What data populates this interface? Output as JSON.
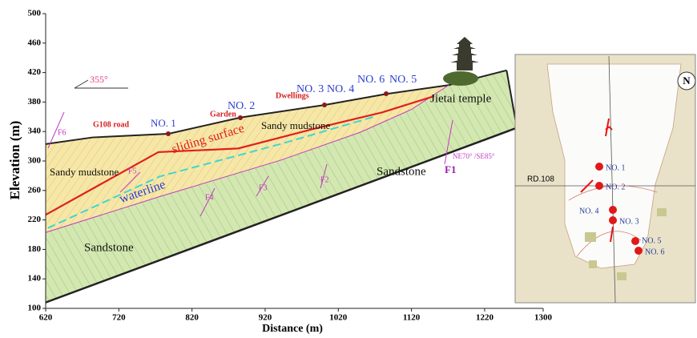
{
  "chart_data": {
    "type": "section",
    "xlabel": "Distance (m)",
    "ylabel": "Elevation (m)",
    "xlim": [
      620,
      1300
    ],
    "ylim": [
      100,
      500
    ],
    "xticks": [
      620,
      720,
      820,
      920,
      1020,
      1120,
      1220,
      1300
    ],
    "yticks": [
      100,
      140,
      180,
      220,
      260,
      300,
      340,
      380,
      420,
      460,
      500
    ],
    "surface": {
      "x": [
        620,
        684,
        788,
        886,
        1001,
        1086,
        1171,
        1250
      ],
      "values": [
        323,
        332,
        337,
        359,
        376,
        391,
        403,
        423
      ]
    },
    "boundary": {
      "x": [
        620,
        777,
        941,
        1050,
        1120,
        1171
      ],
      "values": [
        203,
        252,
        301,
        339,
        370,
        403
      ]
    },
    "base": {
      "x": [
        620,
        1264
      ],
      "values": [
        108,
        345
      ]
    },
    "series": [
      {
        "name": "sliding surface",
        "color": "#e0201c",
        "x": [
          620,
          774,
          883,
          992,
          1080,
          1151
        ],
        "values": [
          227,
          312,
          317,
          345,
          366,
          388
        ]
      },
      {
        "name": "waterline",
        "color": "#3fd6d0",
        "x": [
          623,
          776,
          941,
          1072
        ],
        "values": [
          209,
          279,
          323,
          361
        ]
      }
    ],
    "annotations": [
      "355°",
      "G108 road",
      "NO. 1",
      "Garden",
      "NO. 2",
      "Dwellings",
      "NO. 3",
      "NO. 4",
      "NO. 6",
      "NO. 5",
      "Jietai temple",
      "Sandy mudstone",
      "Sandy mudstone",
      "Sandstone",
      "Sandstone",
      "F6",
      "F5",
      "F4",
      "F3",
      "F2",
      "F1",
      "NE70° /SE85°"
    ]
  },
  "map": {
    "road": "RD.108",
    "north": "N",
    "points": [
      "NO. 1",
      "NO. 2",
      "NO. 3",
      "NO. 4",
      "NO. 5",
      "NO. 6"
    ]
  }
}
